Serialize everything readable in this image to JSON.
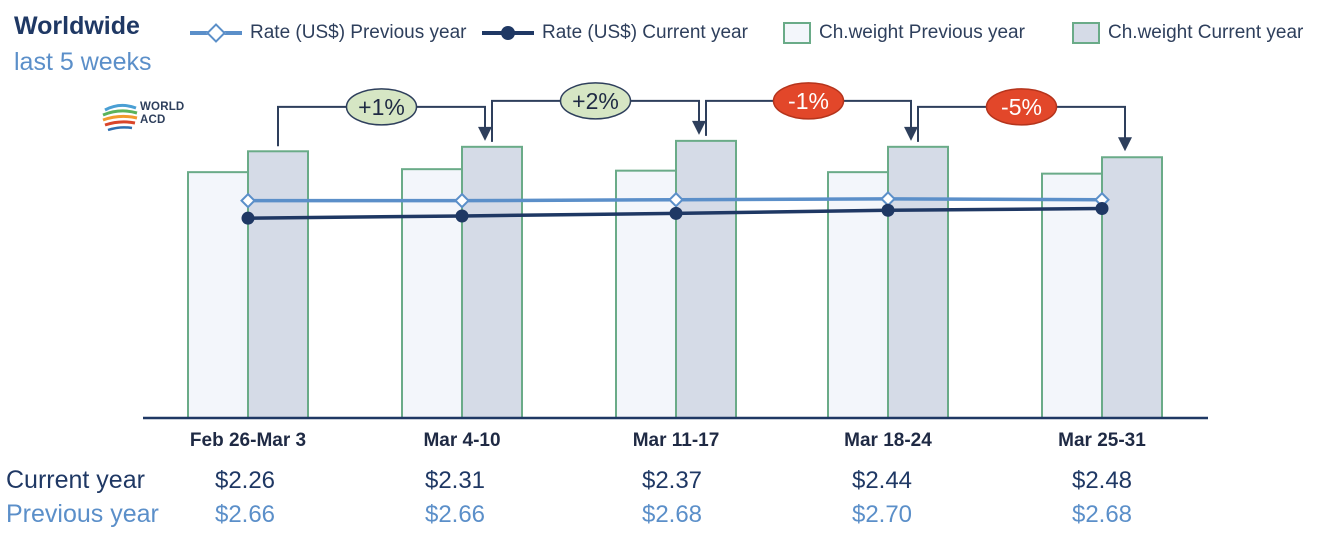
{
  "header": {
    "title": "Worldwide",
    "subtitle": "last 5 weeks"
  },
  "logo": {
    "text_line1": "WORLD",
    "text_line2": "ACD"
  },
  "legend": [
    {
      "label": "Rate (US$) Previous year",
      "icon": "open-diamond-line-icon"
    },
    {
      "label": "Rate (US$) Current year",
      "icon": "filled-circle-line-icon"
    },
    {
      "label": "Ch.weight Previous year",
      "icon": "light-box-icon"
    },
    {
      "label": "Ch.weight Current year",
      "icon": "shaded-box-icon"
    }
  ],
  "colors": {
    "rate_prev": "#5b8fc9",
    "rate_cur": "#1f3864",
    "bar_border": "#6aab88",
    "bar_prev_fill": "#f3f6fb",
    "bar_cur_fill": "#d5dbe7",
    "positive_bubble": "#d6e6c4",
    "negative_bubble": "#e2472a",
    "axis": "#1f3864",
    "arrow": "#2e3f5c"
  },
  "chart_data": {
    "type": "bar",
    "title": "Worldwide",
    "subtitle": "last 5 weeks",
    "categories": [
      "Feb 26-Mar 3",
      "Mar 4-10",
      "Mar 11-17",
      "Mar 18-24",
      "Mar 25-31"
    ],
    "bar_series": [
      {
        "name": "Ch.weight Previous year",
        "values": [
          82.5,
          83.5,
          83,
          82.5,
          82
        ]
      },
      {
        "name": "Ch.weight Current year",
        "values": [
          89.5,
          91,
          93,
          91,
          87.5
        ]
      }
    ],
    "line_series": [
      {
        "name": "Rate (US$) Previous year",
        "values": [
          2.66,
          2.66,
          2.68,
          2.7,
          2.68
        ]
      },
      {
        "name": "Rate (US$) Current year",
        "values": [
          2.26,
          2.31,
          2.37,
          2.44,
          2.48
        ]
      }
    ],
    "changes": [
      {
        "text": "+1%",
        "sign": "positive"
      },
      {
        "text": "+2%",
        "sign": "positive"
      },
      {
        "text": "-1%",
        "sign": "negative"
      },
      {
        "text": "-5%",
        "sign": "negative"
      }
    ],
    "ylim": [
      0,
      100
    ],
    "rate_ylim": [
      -2.3,
      4.5
    ],
    "grid": false,
    "legend_position": "top"
  },
  "table": {
    "current_label": "Current year",
    "previous_label": "Previous year",
    "current_values": [
      "$2.26",
      "$2.31",
      "$2.37",
      "$2.44",
      "$2.48"
    ],
    "previous_values": [
      "$2.66",
      "$2.66",
      "$2.68",
      "$2.70",
      "$2.68"
    ]
  }
}
